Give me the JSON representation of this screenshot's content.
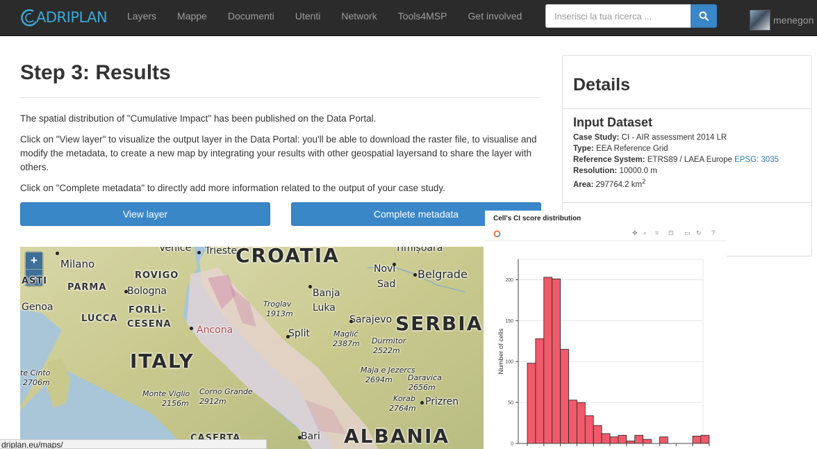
{
  "navbar": {
    "brand": "ADRIPLAN",
    "items": [
      "Layers",
      "Mappe",
      "Documenti",
      "Utenti",
      "Network",
      "Tools4MSP",
      "Get involved"
    ],
    "search": {
      "placeholder": "Inserisci la tua ricerca ..."
    },
    "user": "menegon"
  },
  "main": {
    "title": "Step 3: Results",
    "paragraphs": [
      "The spatial distribution of \"Cumulative Impact\" has been published on the Data Portal.",
      "Click on \"View layer\" to visualize the output layer in the Data Portal: you'll be able to download the raster file, to visualise and modify the metadata, to create a new map by integrating your results with other geospatial layersand to share the layer with others.",
      "Click on \"Complete metadata\" to directly add more information related to the output of your case study."
    ],
    "buttons": {
      "view_layer": "View layer",
      "complete_metadata": "Complete metadata"
    }
  },
  "map": {
    "zoom_in": "+",
    "zoom_out": "−",
    "labels": {
      "milano": "Milano",
      "venice": "Venice",
      "trieste": "Trieste",
      "croatia": "CROATIA",
      "timisoara": "Timișoara",
      "rovigo": "ROVIGO",
      "parma": "PARMA",
      "bologna": "Bologna",
      "asti": "ASTI",
      "novi_sad_1": "Novi",
      "novi_sad_2": "Sad",
      "belgrade": "Belgrade",
      "genoa": "Genoa",
      "lucca": "LUCCA",
      "forli_1": "FORLÌ-",
      "forli_2": "CESENA",
      "troglav_1": "Troglav",
      "troglav_2": "1913m",
      "banja_1": "Banja",
      "banja_2": "Luka",
      "sarajevo": "Sarajevo",
      "serbia": "SERBIA",
      "ancona": "Ancona",
      "split": "Split",
      "maglic_1": "Maglić",
      "maglic_2": "2387m",
      "durmitor_1": "Durmitor",
      "durmitor_2": "2522m",
      "italy": "ITALY",
      "cinto_1": "te Cinto",
      "cinto_2": "2706m",
      "maja_1": "Maja e Jezercs",
      "maja_2": "2694m",
      "daravica_1": "Daravica",
      "daravica_2": "2656m",
      "korab_1": "Korab",
      "korab_2": "2764m",
      "prizren": "Prizren",
      "vigliio_1": "Monte Viglio",
      "vigliio_2": "2156m",
      "corno_1": "Corno Grande",
      "corno_2": "2912m",
      "caserta": "CASERTA",
      "bari": "Bari",
      "albania": "ALBANIA"
    }
  },
  "status_url": "driplan.eu/maps/",
  "details": {
    "title": "Details",
    "subtitle": "Input Dataset",
    "case_study_label": "Case Study:",
    "case_study": "CI - AIR assessment 2014 LR",
    "type_label": "Type:",
    "type": "EEA Reference Grid",
    "ref_label": "Reference System:",
    "ref": "ETRS89 / LAEA Europe",
    "ref_link": "EPSG: 3035",
    "res_label": "Resolution:",
    "res": "10000.0 m",
    "area_label": "Area:",
    "area": "297764.2 km",
    "area_sup": "2"
  },
  "colors": {
    "accent": "#3a87c8",
    "navbar": "#2b2b2b",
    "bar_fill": "#f05a6a",
    "link": "#2a7ab5"
  },
  "chart_data": {
    "type": "bar",
    "title": "Cell's CI score distribution",
    "ylabel": "Number of cells",
    "xlabel": "",
    "ylim": [
      0,
      225
    ],
    "yticks": [
      0,
      50,
      100,
      150,
      200
    ],
    "values": [
      98,
      128,
      203,
      201,
      115,
      53,
      50,
      34,
      22,
      12,
      8,
      10,
      3,
      10,
      5,
      0,
      8,
      0,
      0,
      0,
      9,
      10
    ],
    "grid": true
  }
}
